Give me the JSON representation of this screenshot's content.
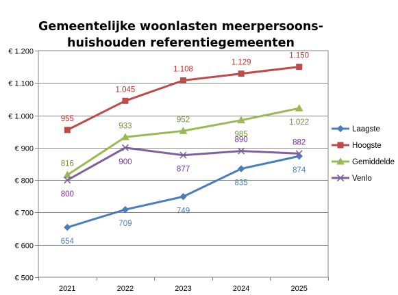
{
  "chart_data": {
    "type": "line",
    "title_lines": [
      "Gemeentelijke woonlasten meerpersoons-",
      "huishouden referentiegemeenten"
    ],
    "x": [
      "2021",
      "2022",
      "2023",
      "2024",
      "2025"
    ],
    "ylim": [
      500,
      1200
    ],
    "yticks": [
      500,
      600,
      700,
      800,
      900,
      1000,
      1100,
      1200
    ],
    "ytick_labels": [
      "€ 500",
      "€ 600",
      "€ 700",
      "€ 800",
      "€ 900",
      "€ 1.000",
      "€ 1.100",
      "€ 1.200"
    ],
    "grid": "horizontal",
    "legend_position": "right",
    "series": [
      {
        "name": "Laagste",
        "values": [
          654,
          709,
          749,
          835,
          874
        ],
        "labels": [
          "654",
          "709",
          "749",
          "835",
          "874"
        ],
        "color": "#4A7EBB",
        "label_color": "#4A7EBB",
        "marker": "diamond",
        "label_position": "below"
      },
      {
        "name": "Hoogste",
        "values": [
          955,
          1045,
          1108,
          1129,
          1150
        ],
        "labels": [
          "955",
          "1.045",
          "1.108",
          "1.129",
          "1.150"
        ],
        "color": "#BE4B48",
        "label_color": "#C0302B",
        "marker": "square",
        "label_position": "above"
      },
      {
        "name": "Gemiddelde",
        "values": [
          816,
          933,
          952,
          985,
          1022
        ],
        "labels": [
          "816",
          "933",
          "952",
          "985",
          "1.022"
        ],
        "color": "#98B954",
        "label_color": "#76923C",
        "marker": "triangle",
        "label_position": [
          "above",
          "above",
          "above",
          "below",
          "below"
        ]
      },
      {
        "name": "Venlo",
        "values": [
          800,
          900,
          877,
          890,
          882
        ],
        "labels": [
          "800",
          "900",
          "877",
          "890",
          "882"
        ],
        "color": "#7D60A0",
        "label_color": "#7030A0",
        "marker": "x",
        "label_position": [
          "below",
          "below",
          "below",
          "above",
          "above"
        ]
      }
    ]
  }
}
